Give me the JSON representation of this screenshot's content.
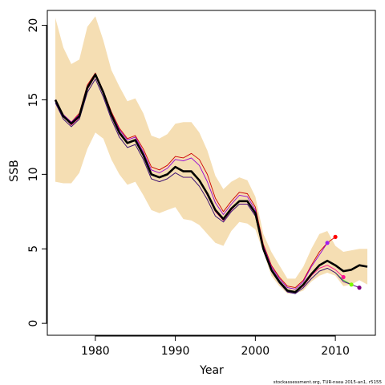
{
  "chart_data": {
    "type": "line",
    "title": "",
    "xlabel": "Year",
    "ylabel": "SSB",
    "xlim": [
      1974,
      2015
    ],
    "ylim": [
      -0.8,
      21
    ],
    "x_ticks": [
      1980,
      1990,
      2000,
      2010
    ],
    "x_tick_labels": [
      "1980",
      "1990",
      "2000",
      "2010"
    ],
    "y_ticks": [
      0,
      5,
      10,
      15,
      20
    ],
    "y_tick_labels": [
      "0",
      "5",
      "10",
      "15",
      "20"
    ],
    "grid": false,
    "legend": "none",
    "footer": "stockassessment.org, TUR-nsea 2015-an1, r5155",
    "colors": {
      "band": "#f5deb3",
      "main": "#000000",
      "retro": [
        "#ff0000",
        "#a020f0",
        "#ff1493",
        "#7cfc00",
        "#800080"
      ],
      "retro_line": [
        "#cd0000",
        "#9400d3",
        "#ff1493",
        "#32cd32",
        "#4b0082"
      ]
    },
    "band": {
      "years": [
        1975,
        1976,
        1977,
        1978,
        1979,
        1980,
        1981,
        1982,
        1983,
        1984,
        1985,
        1986,
        1987,
        1988,
        1989,
        1990,
        1991,
        1992,
        1993,
        1994,
        1995,
        1996,
        1997,
        1998,
        1999,
        2000,
        2001,
        2002,
        2003,
        2004,
        2005,
        2006,
        2007,
        2008,
        2009,
        2010,
        2011,
        2012,
        2013,
        2014
      ],
      "upper": [
        20.5,
        18.5,
        17.4,
        17.7,
        19.9,
        20.6,
        19.0,
        17.0,
        15.9,
        14.9,
        15.1,
        14.1,
        12.6,
        12.4,
        12.7,
        13.4,
        13.5,
        13.5,
        12.8,
        11.6,
        9.9,
        9.0,
        9.5,
        9.8,
        9.6,
        8.5,
        6.0,
        4.8,
        3.9,
        3.0,
        3.0,
        3.8,
        5.0,
        6.0,
        6.2,
        5.2,
        4.8,
        4.9,
        5.0,
        5.0
      ],
      "lower": [
        9.5,
        9.4,
        9.4,
        10.1,
        11.7,
        12.8,
        12.4,
        11.0,
        10.0,
        9.3,
        9.5,
        8.6,
        7.6,
        7.4,
        7.6,
        7.8,
        7.0,
        6.9,
        6.6,
        6.0,
        5.4,
        5.2,
        6.2,
        6.8,
        6.7,
        6.3,
        4.8,
        3.2,
        2.5,
        2.0,
        2.0,
        2.2,
        2.8,
        3.2,
        3.4,
        3.2,
        2.5,
        2.6,
        2.9,
        2.6
      ]
    },
    "series": [
      {
        "x": [
          1975,
          1976,
          1977,
          1978,
          1979,
          1980,
          1981,
          1982,
          1983,
          1984,
          1985,
          1986,
          1987,
          1988,
          1989,
          1990,
          1991,
          1992,
          1993,
          1994,
          1995,
          1996,
          1997,
          1998,
          1999,
          2000,
          2001,
          2002,
          2003,
          2004,
          2005,
          2006,
          2007,
          2008,
          2009,
          2010,
          2011,
          2012,
          2013,
          2014
        ],
        "values": [
          15.0,
          13.9,
          13.4,
          13.9,
          15.8,
          16.7,
          15.5,
          14.0,
          12.8,
          12.1,
          12.3,
          11.3,
          10.0,
          9.8,
          10.0,
          10.5,
          10.2,
          10.2,
          9.6,
          8.7,
          7.6,
          7.0,
          7.7,
          8.2,
          8.2,
          7.4,
          5.0,
          3.6,
          2.8,
          2.2,
          2.1,
          2.6,
          3.3,
          3.9,
          4.2,
          3.9,
          3.5,
          3.6,
          3.9,
          3.8
        ]
      },
      {
        "x": [
          1975,
          1976,
          1977,
          1978,
          1979,
          1980,
          1981,
          1982,
          1983,
          1984,
          1985,
          1986,
          1987,
          1988,
          1989,
          1990,
          1991,
          1992,
          1993,
          1994,
          1995,
          1996,
          1997,
          1998,
          1999,
          2000,
          2001,
          2002,
          2003,
          2004,
          2005,
          2006,
          2007,
          2008,
          2009,
          2010
        ],
        "values": [
          15.0,
          14.0,
          13.5,
          14.1,
          16.0,
          16.8,
          15.6,
          14.2,
          13.1,
          12.4,
          12.6,
          11.7,
          10.5,
          10.3,
          10.6,
          11.2,
          11.1,
          11.4,
          11.0,
          10.0,
          8.4,
          7.5,
          8.2,
          8.8,
          8.7,
          7.8,
          5.3,
          3.9,
          3.1,
          2.5,
          2.4,
          2.9,
          3.9,
          4.8,
          5.4,
          5.8
        ]
      },
      {
        "x": [
          1975,
          1976,
          1977,
          1978,
          1979,
          1980,
          1981,
          1982,
          1983,
          1984,
          1985,
          1986,
          1987,
          1988,
          1989,
          1990,
          1991,
          1992,
          1993,
          1994,
          1995,
          1996,
          1997,
          1998,
          1999,
          2000,
          2001,
          2002,
          2003,
          2004,
          2005,
          2006,
          2007,
          2008,
          2009
        ],
        "values": [
          15.0,
          14.0,
          13.5,
          14.0,
          15.9,
          16.7,
          15.6,
          14.1,
          13.0,
          12.3,
          12.5,
          11.5,
          10.3,
          10.1,
          10.4,
          11.0,
          10.9,
          11.1,
          10.6,
          9.5,
          8.1,
          7.3,
          8.0,
          8.6,
          8.5,
          7.6,
          5.2,
          3.8,
          3.0,
          2.4,
          2.3,
          2.8,
          3.8,
          4.6,
          5.4
        ]
      },
      {
        "x": [
          1975,
          1976,
          1977,
          1978,
          1979,
          1980,
          1981,
          1982,
          1983,
          1984,
          1985,
          1986,
          1987,
          1988,
          1989,
          1990,
          1991,
          1992,
          1993,
          1994,
          1995,
          1996,
          1997,
          1998,
          1999,
          2000,
          2001,
          2002,
          2003,
          2004,
          2005,
          2006,
          2007,
          2008,
          2009,
          2010,
          2011
        ],
        "values": [
          14.9,
          13.9,
          13.3,
          13.8,
          15.7,
          16.6,
          15.4,
          13.9,
          12.7,
          12.1,
          12.3,
          11.3,
          10.0,
          9.8,
          10.0,
          10.5,
          10.2,
          10.2,
          9.6,
          8.6,
          7.5,
          6.9,
          7.6,
          8.2,
          8.2,
          7.3,
          5.0,
          3.6,
          2.8,
          2.2,
          2.1,
          2.5,
          3.2,
          3.7,
          3.9,
          3.6,
          3.1
        ]
      },
      {
        "x": [
          1975,
          1976,
          1977,
          1978,
          1979,
          1980,
          1981,
          1982,
          1983,
          1984,
          1985,
          1986,
          1987,
          1988,
          1989,
          1990,
          1991,
          1992,
          1993,
          1994,
          1995,
          1996,
          1997,
          1998,
          1999,
          2000,
          2001,
          2002,
          2003,
          2004,
          2005,
          2006,
          2007,
          2008,
          2009,
          2010,
          2011,
          2012
        ],
        "values": [
          14.8,
          13.7,
          13.2,
          13.7,
          15.5,
          16.4,
          15.2,
          13.7,
          12.5,
          11.8,
          12.0,
          11.0,
          9.7,
          9.5,
          9.7,
          10.1,
          9.8,
          9.8,
          9.2,
          8.3,
          7.2,
          6.8,
          7.5,
          8.0,
          8.0,
          7.2,
          4.9,
          3.5,
          2.7,
          2.1,
          2.0,
          2.4,
          3.0,
          3.5,
          3.7,
          3.4,
          2.9,
          2.6
        ]
      },
      {
        "x": [
          1975,
          1976,
          1977,
          1978,
          1979,
          1980,
          1981,
          1982,
          1983,
          1984,
          1985,
          1986,
          1987,
          1988,
          1989,
          1990,
          1991,
          1992,
          1993,
          1994,
          1995,
          1996,
          1997,
          1998,
          1999,
          2000,
          2001,
          2002,
          2003,
          2004,
          2005,
          2006,
          2007,
          2008,
          2009,
          2010,
          2011,
          2012,
          2013
        ],
        "values": [
          14.8,
          13.7,
          13.2,
          13.7,
          15.5,
          16.4,
          15.2,
          13.7,
          12.5,
          11.8,
          12.0,
          11.0,
          9.7,
          9.5,
          9.7,
          10.1,
          9.8,
          9.8,
          9.2,
          8.3,
          7.2,
          6.8,
          7.5,
          8.0,
          8.0,
          7.2,
          4.9,
          3.5,
          2.7,
          2.1,
          2.0,
          2.4,
          3.0,
          3.5,
          3.7,
          3.4,
          2.8,
          2.6,
          2.4
        ]
      }
    ]
  }
}
